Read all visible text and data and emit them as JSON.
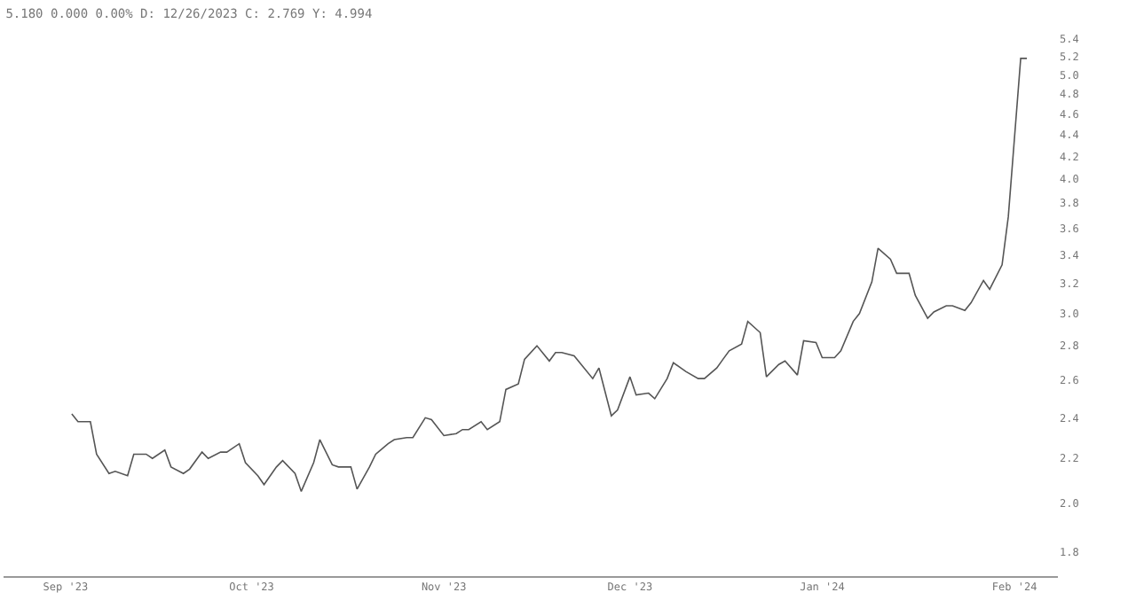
{
  "chart_data": {
    "type": "line",
    "title": "5.180 0.000 0.00% D: 12/26/2023 C: 2.769 Y: 4.994",
    "x": [
      "2023-09-02",
      "2023-09-03",
      "2023-09-05",
      "2023-09-06",
      "2023-09-08",
      "2023-09-09",
      "2023-09-11",
      "2023-09-12",
      "2023-09-14",
      "2023-09-15",
      "2023-09-17",
      "2023-09-18",
      "2023-09-20",
      "2023-09-21",
      "2023-09-23",
      "2023-09-24",
      "2023-09-26",
      "2023-09-27",
      "2023-09-29",
      "2023-09-30",
      "2023-10-02",
      "2023-10-03",
      "2023-10-05",
      "2023-10-06",
      "2023-10-08",
      "2023-10-09",
      "2023-10-11",
      "2023-10-12",
      "2023-10-14",
      "2023-10-15",
      "2023-10-17",
      "2023-10-18",
      "2023-10-20",
      "2023-10-21",
      "2023-10-23",
      "2023-10-24",
      "2023-10-26",
      "2023-10-27",
      "2023-10-29",
      "2023-10-30",
      "2023-11-01",
      "2023-11-03",
      "2023-11-04",
      "2023-11-05",
      "2023-11-07",
      "2023-11-08",
      "2023-11-10",
      "2023-11-11",
      "2023-11-13",
      "2023-11-14",
      "2023-11-16",
      "2023-11-18",
      "2023-11-19",
      "2023-11-20",
      "2023-11-22",
      "2023-11-25",
      "2023-11-26",
      "2023-11-28",
      "2023-11-29",
      "2023-12-01",
      "2023-12-02",
      "2023-12-04",
      "2023-12-05",
      "2023-12-07",
      "2023-12-08",
      "2023-12-10",
      "2023-12-12",
      "2023-12-13",
      "2023-12-15",
      "2023-12-16",
      "2023-12-17",
      "2023-12-19",
      "2023-12-20",
      "2023-12-22",
      "2023-12-23",
      "2023-12-25",
      "2023-12-26",
      "2023-12-28",
      "2023-12-29",
      "2023-12-31",
      "2024-01-01",
      "2024-01-03",
      "2024-01-04",
      "2024-01-06",
      "2024-01-07",
      "2024-01-09",
      "2024-01-10",
      "2024-01-12",
      "2024-01-13",
      "2024-01-15",
      "2024-01-16",
      "2024-01-18",
      "2024-01-19",
      "2024-01-21",
      "2024-01-22",
      "2024-01-24",
      "2024-01-25",
      "2024-01-27",
      "2024-01-28",
      "2024-01-30",
      "2024-01-31",
      "2024-02-01",
      "2024-02-02",
      "2024-02-03"
    ],
    "values": [
      2.42,
      2.38,
      2.38,
      2.22,
      2.13,
      2.14,
      2.12,
      2.22,
      2.22,
      2.2,
      2.24,
      2.16,
      2.13,
      2.15,
      2.23,
      2.2,
      2.23,
      2.23,
      2.27,
      2.18,
      2.12,
      2.08,
      2.16,
      2.19,
      2.13,
      2.05,
      2.18,
      2.29,
      2.17,
      2.16,
      2.16,
      2.06,
      2.16,
      2.22,
      2.27,
      2.29,
      2.3,
      2.3,
      2.4,
      2.39,
      2.31,
      2.32,
      2.34,
      2.34,
      2.38,
      2.34,
      2.38,
      2.55,
      2.58,
      2.72,
      2.8,
      2.71,
      2.76,
      2.76,
      2.74,
      2.61,
      2.67,
      2.41,
      2.44,
      2.62,
      2.52,
      2.53,
      2.5,
      2.61,
      2.7,
      2.65,
      2.61,
      2.61,
      2.67,
      2.72,
      2.77,
      2.81,
      2.95,
      2.88,
      2.62,
      2.69,
      2.71,
      2.63,
      2.83,
      2.82,
      2.73,
      2.73,
      2.77,
      2.95,
      3.0,
      3.21,
      3.45,
      3.37,
      3.27,
      3.27,
      3.12,
      2.97,
      3.01,
      3.05,
      3.05,
      3.02,
      3.07,
      3.22,
      3.16,
      3.33,
      3.69,
      4.37,
      5.18,
      5.18
    ],
    "color": "#555555",
    "log": true,
    "ylim": [
      1.71,
      5.4
    ],
    "yticks": [
      1.8,
      {
        "value": 2,
        "label": "2.0"
      },
      2.2,
      2.4,
      2.6,
      2.8,
      {
        "value": 3,
        "label": "3.0"
      },
      3.2,
      3.4,
      3.6,
      3.8,
      {
        "value": 4,
        "label": "4.0"
      },
      4.2,
      4.4,
      4.6,
      4.8,
      {
        "value": 5,
        "label": "5.0"
      },
      5.2,
      5.4
    ],
    "xlim": [
      "2023-08-22",
      "2024-02-08"
    ],
    "xticks": [
      {
        "value": "2023-09-01",
        "label": "Sep '23"
      },
      {
        "value": "2023-10-01",
        "label": "Oct '23"
      },
      {
        "value": "2023-11-01",
        "label": "Nov '23"
      },
      {
        "value": "2023-12-01",
        "label": "Dec '23"
      },
      {
        "value": "2024-01-01",
        "label": "Jan '24"
      },
      {
        "value": "2024-02-01",
        "label": "Feb '24"
      }
    ],
    "legend": false,
    "marker": "none",
    "line_style": "solid"
  }
}
